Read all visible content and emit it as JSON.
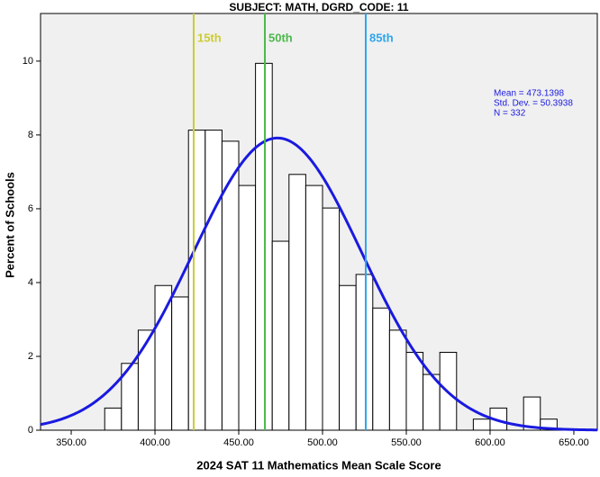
{
  "chart_data": {
    "type": "histogram",
    "title": "SUBJECT: MATH, DGRD_CODE: 11",
    "xlabel": "2024 SAT 11 Mathematics Mean Scale Score",
    "ylabel": "Percent of Schools",
    "bins": [
      370,
      380,
      390,
      400,
      410,
      420,
      430,
      440,
      450,
      460,
      470,
      480,
      490,
      500,
      510,
      520,
      530,
      540,
      550,
      560,
      570,
      580,
      590,
      600,
      610,
      620,
      630,
      640
    ],
    "values": [
      0.6,
      1.81,
      2.71,
      3.92,
      3.61,
      8.13,
      8.13,
      7.83,
      6.63,
      9.94,
      5.12,
      6.93,
      6.63,
      6.02,
      3.92,
      4.22,
      3.31,
      2.71,
      2.11,
      1.51,
      2.11,
      0,
      0.3,
      0.6,
      0,
      0.9,
      0.3
    ],
    "color": "#ffffff",
    "xlim": [
      331.7,
      664
    ],
    "xticks": [
      {
        "value": 350,
        "label": "350.00"
      },
      {
        "value": 400,
        "label": "400.00"
      },
      {
        "value": 450,
        "label": "450.00"
      },
      {
        "value": 500,
        "label": "500.00"
      },
      {
        "value": 550,
        "label": "550.00"
      },
      {
        "value": 600,
        "label": "600.00"
      },
      {
        "value": 650,
        "label": "650.00"
      }
    ],
    "ylim": [
      0,
      11.29
    ],
    "yticks": [
      0,
      2,
      4,
      6,
      8,
      10
    ],
    "reference_lines": [
      {
        "label": "15th",
        "value": 423.1,
        "color": "#cccc33"
      },
      {
        "label": "50th",
        "value": 465.6,
        "color": "#4cb84c"
      },
      {
        "label": "85th",
        "value": 525.8,
        "color": "#2ea6ea"
      }
    ],
    "stats": [
      {
        "value": 473.1398,
        "label": "Mean = 473.1398"
      },
      {
        "value": 50.3938,
        "label": "Std. Dev. = 50.3938"
      },
      {
        "value": 332,
        "label": "N = 332"
      }
    ],
    "curve_color": "#1a1ae0"
  }
}
